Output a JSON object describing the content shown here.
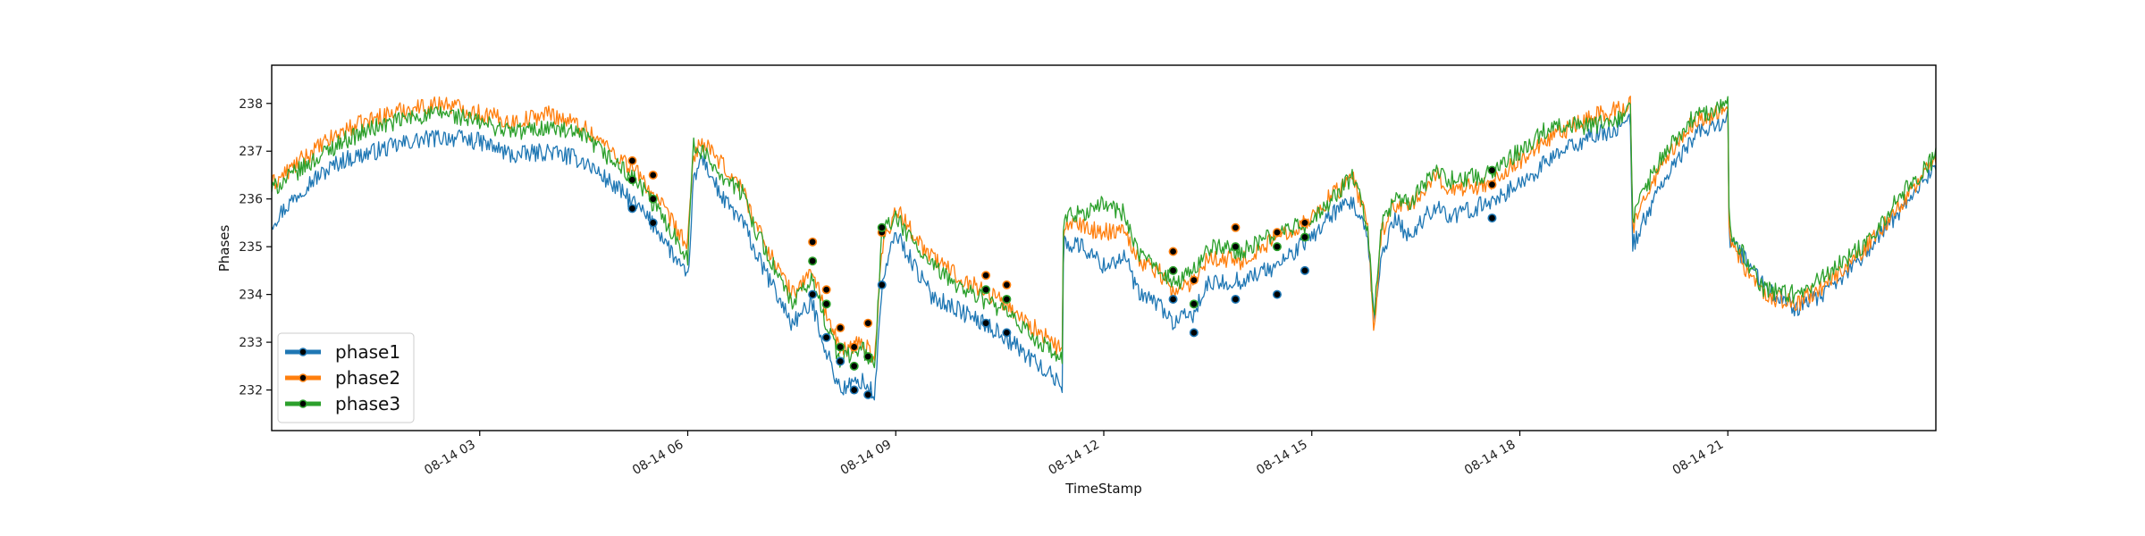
{
  "chart_data": {
    "type": "line",
    "title": "",
    "xlabel": "TimeStamp",
    "ylabel": "Phases",
    "x_ticks": [
      {
        "value": 3,
        "label": "08-14 03"
      },
      {
        "value": 6,
        "label": "08-14 06"
      },
      {
        "value": 9,
        "label": "08-14 09"
      },
      {
        "value": 12,
        "label": "08-14 12"
      },
      {
        "value": 15,
        "label": "08-14 15"
      },
      {
        "value": 18,
        "label": "08-14 18"
      },
      {
        "value": 21,
        "label": "08-14 21"
      }
    ],
    "y_ticks": [
      232,
      233,
      234,
      235,
      236,
      237,
      238
    ],
    "xlim": [
      0,
      24
    ],
    "ylim": [
      231.15,
      238.8
    ],
    "grid": false,
    "legend_position": "lower-left",
    "series": [
      {
        "name": "phase1",
        "color": "#1f77b4",
        "x": [
          0,
          0.5,
          1,
          1.5,
          2,
          2.5,
          3,
          3.5,
          4,
          4.5,
          5,
          5.3,
          5.6,
          6,
          6.08,
          6.2,
          6.5,
          6.8,
          7,
          7.5,
          7.8,
          8,
          8.2,
          8.5,
          8.7,
          8.8,
          9,
          9.5,
          10,
          10.5,
          11,
          11.4,
          11.42,
          11.7,
          12,
          12.3,
          12.5,
          12.8,
          13,
          13.3,
          13.5,
          14,
          14.5,
          15,
          15.3,
          15.6,
          15.8,
          15.9,
          16,
          16.2,
          16.4,
          16.8,
          17,
          17.5,
          18,
          18.5,
          19,
          19.5,
          19.6,
          19.62,
          20,
          20.5,
          21,
          21.02,
          21.5,
          22,
          22.5,
          23,
          23.5,
          24
        ],
        "y": [
          235.5,
          236.3,
          236.8,
          237,
          237.2,
          237.3,
          237.2,
          236.9,
          237,
          236.8,
          236.2,
          235.8,
          235.3,
          234.3,
          236.3,
          236.9,
          236.0,
          235.5,
          234.8,
          233.4,
          233.8,
          232.8,
          232.0,
          232.2,
          231.9,
          234.2,
          235.3,
          234.0,
          233.6,
          233.2,
          232.6,
          232.1,
          235.1,
          235.0,
          234.6,
          234.8,
          234.0,
          233.8,
          233.4,
          233.6,
          234.2,
          234.3,
          234.6,
          235.2,
          235.7,
          235.9,
          235.2,
          233.4,
          234.8,
          235.6,
          235.2,
          235.9,
          235.6,
          235.9,
          236.3,
          236.9,
          237.3,
          237.5,
          237.7,
          235.0,
          236.2,
          237.3,
          237.7,
          235.2,
          234.2,
          233.7,
          234.1,
          234.9,
          235.8,
          236.7
        ]
      },
      {
        "name": "phase2",
        "color": "#ff7f0e",
        "x": [
          0,
          0.5,
          1,
          1.5,
          2,
          2.5,
          3,
          3.5,
          4,
          4.5,
          5,
          5.3,
          5.6,
          6,
          6.08,
          6.2,
          6.5,
          6.8,
          7,
          7.5,
          7.8,
          8,
          8.2,
          8.5,
          8.7,
          8.8,
          9,
          9.5,
          10,
          10.5,
          11,
          11.4,
          11.42,
          11.7,
          12,
          12.3,
          12.5,
          12.8,
          13,
          13.3,
          13.5,
          14,
          14.5,
          15,
          15.3,
          15.6,
          15.8,
          15.9,
          16,
          16.2,
          16.4,
          16.8,
          17,
          17.5,
          18,
          18.5,
          19,
          19.5,
          19.6,
          19.62,
          20,
          20.5,
          21,
          21.02,
          21.5,
          22,
          22.5,
          23,
          23.5,
          24
        ],
        "y": [
          236.3,
          236.9,
          237.4,
          237.7,
          237.9,
          238.0,
          237.8,
          237.6,
          237.8,
          237.5,
          236.9,
          236.5,
          235.9,
          235.0,
          236.9,
          237.2,
          236.7,
          236.2,
          235.4,
          234.0,
          234.5,
          233.6,
          232.8,
          233.0,
          232.7,
          235.0,
          235.8,
          234.8,
          234.3,
          233.9,
          233.3,
          232.8,
          235.5,
          235.4,
          235.3,
          235.4,
          234.7,
          234.5,
          234.0,
          234.3,
          234.8,
          234.7,
          235.2,
          235.6,
          236.1,
          236.4,
          235.5,
          233.2,
          235.3,
          235.9,
          235.8,
          236.5,
          236.2,
          236.3,
          236.8,
          237.3,
          237.7,
          237.9,
          238.0,
          235.4,
          236.6,
          237.6,
          237.9,
          235.1,
          234.0,
          233.8,
          234.3,
          235.0,
          235.9,
          236.9
        ]
      },
      {
        "name": "phase3",
        "color": "#2ca02c",
        "x": [
          0,
          0.5,
          1,
          1.5,
          2,
          2.5,
          3,
          3.5,
          4,
          4.5,
          5,
          5.3,
          5.6,
          6,
          6.08,
          6.2,
          6.5,
          6.8,
          7,
          7.5,
          7.8,
          8,
          8.2,
          8.5,
          8.7,
          8.8,
          9,
          9.5,
          10,
          10.5,
          11,
          11.4,
          11.42,
          11.7,
          12,
          12.3,
          12.5,
          12.8,
          13,
          13.3,
          13.5,
          14,
          14.5,
          15,
          15.3,
          15.6,
          15.8,
          15.9,
          16,
          16.2,
          16.4,
          16.8,
          17,
          17.5,
          18,
          18.5,
          19,
          19.5,
          19.6,
          19.62,
          20,
          20.5,
          21,
          21.02,
          21.5,
          22,
          22.5,
          23,
          23.5,
          24
        ],
        "y": [
          236.2,
          236.7,
          237.2,
          237.5,
          237.7,
          237.8,
          237.6,
          237.4,
          237.5,
          237.3,
          236.7,
          236.3,
          235.7,
          234.8,
          237.1,
          237.0,
          236.5,
          236.1,
          235.3,
          233.8,
          234.3,
          233.4,
          232.6,
          232.9,
          232.5,
          235.3,
          235.6,
          234.6,
          234.1,
          233.7,
          233.1,
          232.6,
          235.6,
          235.7,
          235.9,
          235.7,
          234.8,
          234.6,
          234.2,
          234.5,
          235.0,
          234.9,
          235.3,
          235.5,
          236.0,
          236.5,
          235.4,
          233.6,
          235.4,
          236.0,
          235.9,
          236.6,
          236.4,
          236.5,
          237.0,
          237.6,
          237.5,
          237.7,
          237.9,
          235.6,
          236.8,
          237.7,
          238.0,
          235.4,
          234.1,
          234.0,
          234.5,
          235.1,
          236.1,
          236.9
        ]
      }
    ],
    "markers": [
      {
        "series": "phase1",
        "color": "#1f77b4",
        "points": [
          [
            5.2,
            235.8
          ],
          [
            5.5,
            235.5
          ],
          [
            7.8,
            234.0
          ],
          [
            8.0,
            233.1
          ],
          [
            8.2,
            232.6
          ],
          [
            8.4,
            232.0
          ],
          [
            8.6,
            231.9
          ],
          [
            8.8,
            234.2
          ],
          [
            10.3,
            233.4
          ],
          [
            10.6,
            233.2
          ],
          [
            13.0,
            233.9
          ],
          [
            13.3,
            233.2
          ],
          [
            13.9,
            233.9
          ],
          [
            14.5,
            234.0
          ],
          [
            14.9,
            234.5
          ],
          [
            17.6,
            235.6
          ]
        ]
      },
      {
        "series": "phase2",
        "color": "#ff7f0e",
        "points": [
          [
            5.2,
            236.8
          ],
          [
            5.5,
            236.5
          ],
          [
            7.8,
            235.1
          ],
          [
            8.0,
            234.1
          ],
          [
            8.2,
            233.3
          ],
          [
            8.4,
            232.9
          ],
          [
            8.6,
            233.4
          ],
          [
            8.8,
            235.3
          ],
          [
            10.3,
            234.4
          ],
          [
            10.6,
            234.2
          ],
          [
            13.0,
            234.9
          ],
          [
            13.3,
            234.3
          ],
          [
            13.9,
            235.4
          ],
          [
            14.5,
            235.3
          ],
          [
            14.9,
            235.5
          ],
          [
            17.6,
            236.3
          ]
        ]
      },
      {
        "series": "phase3",
        "color": "#2ca02c",
        "points": [
          [
            5.2,
            236.4
          ],
          [
            5.5,
            236.0
          ],
          [
            7.8,
            234.7
          ],
          [
            8.0,
            233.8
          ],
          [
            8.2,
            232.9
          ],
          [
            8.4,
            232.5
          ],
          [
            8.6,
            232.7
          ],
          [
            8.8,
            235.4
          ],
          [
            10.3,
            234.1
          ],
          [
            10.6,
            233.9
          ],
          [
            13.0,
            234.5
          ],
          [
            13.3,
            233.8
          ],
          [
            13.9,
            235.0
          ],
          [
            14.5,
            235.0
          ],
          [
            14.9,
            235.2
          ],
          [
            17.6,
            236.6
          ]
        ]
      }
    ]
  }
}
